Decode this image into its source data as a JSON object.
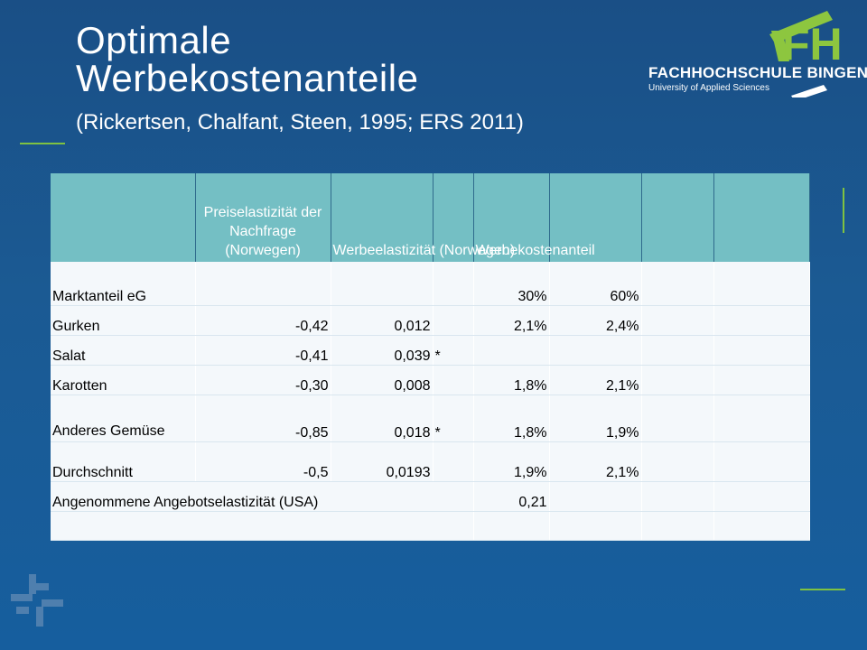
{
  "title": {
    "line1": "Optimale",
    "line2": "Werbekostenanteile",
    "subtitle": "(Rickertsen, Chalfant, Steen, 1995; ERS 2011)"
  },
  "logo": {
    "mark": "FH",
    "name": "FACHHOCHSCHULE BINGEN",
    "sub": "University of Applied Sciences"
  },
  "colors": {
    "background": "#1b5a93",
    "accent_green": "#7fc241",
    "header_teal": "#74bfc4"
  },
  "table": {
    "headers": [
      "",
      "Preiselastizität der Nachfrage (Norwegen)",
      "Werbeelastizität (Norwegen)",
      "",
      "Werbekostenanteil",
      "",
      "",
      ""
    ],
    "rows": [
      [
        "Marktanteil eG",
        "",
        "",
        "",
        "30%",
        "60%",
        "",
        ""
      ],
      [
        "Gurken",
        "-0,42",
        "0,012",
        "",
        "2,1%",
        "2,4%",
        "",
        ""
      ],
      [
        "Salat",
        "-0,41",
        "0,039",
        "*",
        "",
        "",
        "",
        ""
      ],
      [
        "Karotten",
        "-0,30",
        "0,008",
        "",
        "1,8%",
        "2,1%",
        "",
        ""
      ],
      [
        "Anderes Gemüse",
        "-0,85",
        "0,018",
        "*",
        "1,8%",
        "1,9%",
        "",
        ""
      ],
      [
        "Durchschnitt",
        "-0,5",
        "0,0193",
        "",
        "1,9%",
        "2,1%",
        "",
        ""
      ]
    ],
    "supply_label": "Angenommene Angebotselastizität (USA)",
    "supply_value": "0,21"
  }
}
